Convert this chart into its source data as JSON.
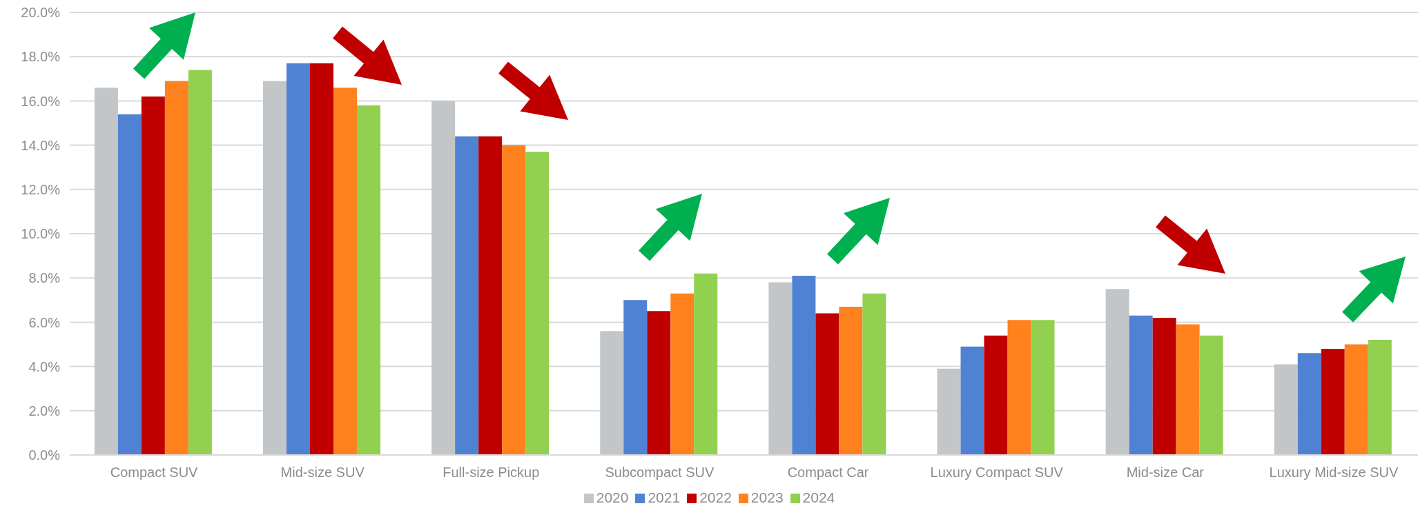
{
  "chart_data": {
    "type": "bar",
    "categories": [
      "Compact SUV",
      "Mid-size SUV",
      "Full-size Pickup",
      "Subcompact SUV",
      "Compact Car",
      "Luxury Compact SUV",
      "Mid-size Car",
      "Luxury Mid-size SUV"
    ],
    "series": [
      {
        "name": "2020",
        "color": "#c3c6c8",
        "values": [
          16.6,
          16.9,
          16.0,
          5.6,
          7.8,
          3.9,
          7.5,
          4.1
        ]
      },
      {
        "name": "2021",
        "color": "#5082d4",
        "values": [
          15.4,
          17.7,
          14.4,
          7.0,
          8.1,
          4.9,
          6.3,
          4.6
        ]
      },
      {
        "name": "2022",
        "color": "#c00000",
        "values": [
          16.2,
          17.7,
          14.4,
          6.5,
          6.4,
          5.4,
          6.2,
          4.8
        ]
      },
      {
        "name": "2023",
        "color": "#ff821e",
        "values": [
          16.9,
          16.6,
          14.0,
          7.3,
          6.7,
          6.1,
          5.9,
          5.0
        ]
      },
      {
        "name": "2024",
        "color": "#92d050",
        "values": [
          17.4,
          15.8,
          13.7,
          8.2,
          7.3,
          6.1,
          5.4,
          5.2
        ]
      }
    ],
    "ylim": [
      0,
      20
    ],
    "yticks": [
      {
        "value": 0,
        "label": "0.0%"
      },
      {
        "value": 2,
        "label": "2.0%"
      },
      {
        "value": 4,
        "label": "4.0%"
      },
      {
        "value": 6,
        "label": "6.0%"
      },
      {
        "value": 8,
        "label": "8.0%"
      },
      {
        "value": 10,
        "label": "10.0%"
      },
      {
        "value": 12,
        "label": "12.0%"
      },
      {
        "value": 14,
        "label": "14.0%"
      },
      {
        "value": 16,
        "label": "16.0%"
      },
      {
        "value": 18,
        "label": "18.0%"
      },
      {
        "value": 20,
        "label": "20.0%"
      }
    ],
    "grid": "y",
    "legend": "bottom"
  }
}
